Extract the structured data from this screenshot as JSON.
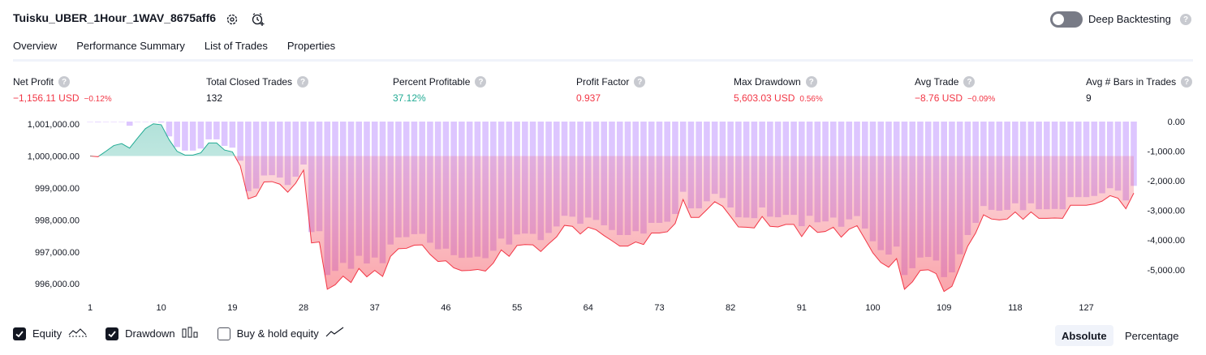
{
  "header": {
    "title": "Tuisku_UBER_1Hour_1WAV_8675aff6",
    "settings_icon": "gear-icon",
    "alert_icon": "add-alert-clock-icon",
    "deep_backtesting_label": "Deep Backtesting",
    "deep_backtesting_enabled": false,
    "help_glyph": "?"
  },
  "tabs": [
    {
      "label": "Overview",
      "active": true
    },
    {
      "label": "Performance Summary",
      "active": false
    },
    {
      "label": "List of Trades",
      "active": false
    },
    {
      "label": "Properties",
      "active": false
    }
  ],
  "metrics": [
    {
      "label": "Net Profit",
      "value": "−1,156.11 USD",
      "pct": "−0.12%",
      "tone": "neg"
    },
    {
      "label": "Total Closed Trades",
      "value": "132",
      "pct": "",
      "tone": "neu"
    },
    {
      "label": "Percent Profitable",
      "value": "37.12%",
      "pct": "",
      "tone": "pos"
    },
    {
      "label": "Profit Factor",
      "value": "0.937",
      "pct": "",
      "tone": "neg"
    },
    {
      "label": "Max Drawdown",
      "value": "5,603.03 USD",
      "pct": "0.56%",
      "tone": "neg"
    },
    {
      "label": "Avg Trade",
      "value": "−8.76 USD",
      "pct": "−0.09%",
      "tone": "neg"
    },
    {
      "label": "Avg # Bars in Trades",
      "value": "9",
      "pct": "",
      "tone": "neu"
    }
  ],
  "chart_data": {
    "type": "line",
    "baseline": 1000000,
    "left_axis_ticks": [
      "1,001,000.00",
      "1,000,000.00",
      "999,000.00",
      "998,000.00",
      "997,000.00",
      "996,000.00"
    ],
    "left_axis_values": [
      1001000,
      1000000,
      999000,
      998000,
      997000,
      996000
    ],
    "right_axis_ticks": [
      "0.00",
      "-1,000.00",
      "-2,000.00",
      "-3,000.00",
      "-4,000.00",
      "-5,000.00"
    ],
    "right_axis_values": [
      0,
      -1000,
      -2000,
      -3000,
      -4000,
      -5000
    ],
    "x_ticks": [
      "1",
      "10",
      "19",
      "28",
      "37",
      "46",
      "55",
      "64",
      "73",
      "82",
      "91",
      "100",
      "109",
      "118",
      "127"
    ],
    "x_tick_values": [
      1,
      10,
      19,
      28,
      37,
      46,
      55,
      64,
      73,
      82,
      91,
      100,
      109,
      118,
      127
    ],
    "xlim": [
      1,
      132
    ],
    "series": [
      {
        "name": "Equity",
        "color_up": "#22ab94",
        "color_down": "#f23645"
      },
      {
        "name": "Drawdown",
        "color": "#d1b3ff"
      },
      {
        "name": "Buy & hold equity",
        "visible": false
      }
    ],
    "equity_points": [
      [
        1,
        1000000
      ],
      [
        2,
        999980
      ],
      [
        3,
        1000150
      ],
      [
        4,
        1000330
      ],
      [
        5,
        1000390
      ],
      [
        6,
        1000250
      ],
      [
        7,
        1000560
      ],
      [
        8,
        1000860
      ],
      [
        9,
        1001010
      ],
      [
        10,
        1000980
      ],
      [
        11,
        1000510
      ],
      [
        12,
        1000150
      ],
      [
        13,
        1000030
      ],
      [
        14,
        1000030
      ],
      [
        15,
        1000100
      ],
      [
        16,
        1000410
      ],
      [
        17,
        1000410
      ],
      [
        18,
        1000190
      ],
      [
        19,
        1000130
      ],
      [
        20,
        999690
      ],
      [
        21,
        998660
      ],
      [
        22,
        998750
      ],
      [
        23,
        999190
      ],
      [
        24,
        999200
      ],
      [
        25,
        999120
      ],
      [
        26,
        998870
      ],
      [
        27,
        999150
      ],
      [
        28,
        999560
      ],
      [
        29,
        997280
      ],
      [
        30,
        997310
      ],
      [
        31,
        995830
      ],
      [
        32,
        995970
      ],
      [
        33,
        996240
      ],
      [
        34,
        996040
      ],
      [
        35,
        996480
      ],
      [
        36,
        996220
      ],
      [
        37,
        996420
      ],
      [
        38,
        996230
      ],
      [
        39,
        996860
      ],
      [
        40,
        997100
      ],
      [
        41,
        997110
      ],
      [
        42,
        997210
      ],
      [
        43,
        997220
      ],
      [
        44,
        996920
      ],
      [
        45,
        996700
      ],
      [
        46,
        996720
      ],
      [
        47,
        996500
      ],
      [
        48,
        996410
      ],
      [
        49,
        996420
      ],
      [
        50,
        996450
      ],
      [
        51,
        996400
      ],
      [
        52,
        996650
      ],
      [
        53,
        997060
      ],
      [
        54,
        996860
      ],
      [
        55,
        997200
      ],
      [
        56,
        997230
      ],
      [
        57,
        997220
      ],
      [
        58,
        997010
      ],
      [
        59,
        997250
      ],
      [
        60,
        997470
      ],
      [
        61,
        997830
      ],
      [
        62,
        997800
      ],
      [
        63,
        997560
      ],
      [
        64,
        997770
      ],
      [
        65,
        997690
      ],
      [
        66,
        997510
      ],
      [
        67,
        997350
      ],
      [
        68,
        997180
      ],
      [
        69,
        997180
      ],
      [
        70,
        997310
      ],
      [
        71,
        997230
      ],
      [
        72,
        997590
      ],
      [
        73,
        997590
      ],
      [
        74,
        997630
      ],
      [
        75,
        997890
      ],
      [
        76,
        998640
      ],
      [
        77,
        998080
      ],
      [
        78,
        998080
      ],
      [
        79,
        998320
      ],
      [
        80,
        998570
      ],
      [
        81,
        998430
      ],
      [
        82,
        998110
      ],
      [
        83,
        997780
      ],
      [
        84,
        997770
      ],
      [
        85,
        997750
      ],
      [
        86,
        998110
      ],
      [
        87,
        997800
      ],
      [
        88,
        997780
      ],
      [
        89,
        997860
      ],
      [
        90,
        997860
      ],
      [
        91,
        997480
      ],
      [
        92,
        997830
      ],
      [
        93,
        997610
      ],
      [
        94,
        997640
      ],
      [
        95,
        997770
      ],
      [
        96,
        997460
      ],
      [
        97,
        997710
      ],
      [
        98,
        997820
      ],
      [
        99,
        997400
      ],
      [
        100,
        996970
      ],
      [
        101,
        996670
      ],
      [
        102,
        996520
      ],
      [
        103,
        996790
      ],
      [
        104,
        995830
      ],
      [
        105,
        996060
      ],
      [
        106,
        996420
      ],
      [
        107,
        996440
      ],
      [
        108,
        996320
      ],
      [
        109,
        995760
      ],
      [
        110,
        995920
      ],
      [
        111,
        996530
      ],
      [
        112,
        997180
      ],
      [
        113,
        997590
      ],
      [
        114,
        998160
      ],
      [
        115,
        998030
      ],
      [
        116,
        998000
      ],
      [
        117,
        998030
      ],
      [
        118,
        998250
      ],
      [
        119,
        998020
      ],
      [
        120,
        998250
      ],
      [
        121,
        998050
      ],
      [
        122,
        998050
      ],
      [
        123,
        998060
      ],
      [
        124,
        998050
      ],
      [
        125,
        998460
      ],
      [
        126,
        998460
      ],
      [
        127,
        998460
      ],
      [
        128,
        998500
      ],
      [
        129,
        998590
      ],
      [
        130,
        998760
      ],
      [
        131,
        998680
      ],
      [
        132,
        998350
      ],
      [
        133,
        998840
      ]
    ]
  },
  "legend": {
    "equity_label": "Equity",
    "equity_checked": true,
    "equity_icon": "equity-line-icon",
    "drawdown_label": "Drawdown",
    "drawdown_checked": true,
    "drawdown_icon": "drawdown-bars-icon",
    "buyhold_label": "Buy & hold equity",
    "buyhold_checked": false,
    "buyhold_icon": "buyhold-line-icon"
  },
  "view_modes": {
    "absolute_label": "Absolute",
    "percentage_label": "Percentage",
    "active": "absolute"
  }
}
